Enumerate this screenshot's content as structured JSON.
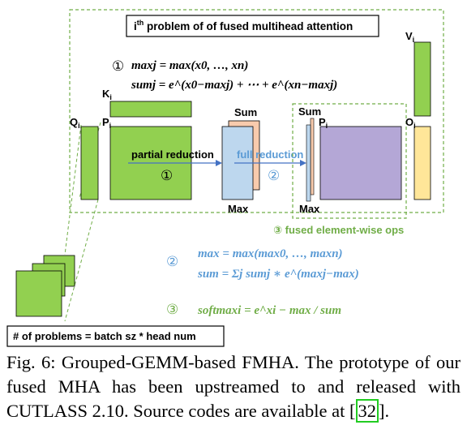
{
  "title": {
    "sup": "th",
    "text": " problem of of fused multihead attention"
  },
  "eq1": {
    "marker": "①",
    "max_line": "maxj = max(x0, …, xn)",
    "sum_line": "sumj = e^(x0−maxj) + ⋯ + e^(xn−maxj)"
  },
  "labels": {
    "k": "K",
    "q": "Q",
    "p": "P",
    "p2": "P",
    "o": "O",
    "v": "V",
    "sub_i": "i",
    "sum1": "Sum",
    "max1": "Max",
    "sum2": "Sum",
    "max2": "Max",
    "partial_reduction": "partial reduction",
    "full_reduction": "full reduction",
    "step1_marker": "①",
    "step2_marker": "②",
    "fused_ops": "③ fused element-wise ops"
  },
  "eq2": {
    "marker": "②",
    "max_line": "max = max(max0, …, maxn)",
    "sum_line": "sum = Σj sumj ∗ e^(maxj−max)"
  },
  "eq3": {
    "marker": "③",
    "line": "softmaxi = e^xi − max / sum"
  },
  "problems_label": "# of problems = batch sz * head num",
  "caption": {
    "before_cite": "Fig. 6: Grouped-GEMM-based FMHA. The prototype of our fused MHA has been upstreamed to and released with CUTLASS 2.10. Source codes are available at [",
    "cite": "32",
    "after_cite": "]."
  },
  "colors": {
    "green": "#92d050",
    "green_dash": "#70ad47",
    "blue_mat": "#bdd7ee",
    "orange": "#f8cbad",
    "purple": "#b4a7d6",
    "yellow": "#ffe699",
    "blue_text": "#5b9bd5",
    "green_text": "#70ad47"
  }
}
